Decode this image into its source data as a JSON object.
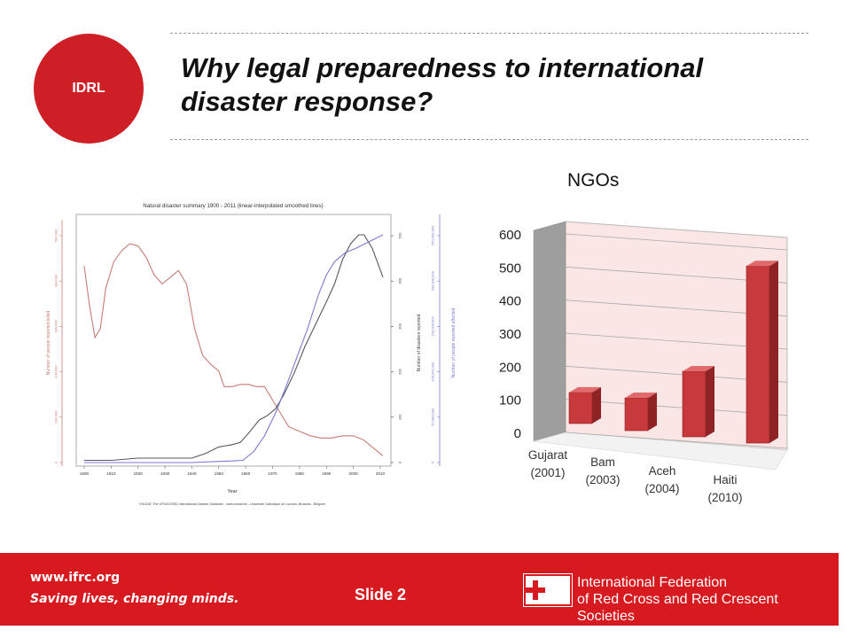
{
  "badge": {
    "label": "IDRL"
  },
  "title": "Why legal preparedness to international disaster response?",
  "left_chart": {
    "title": "Natural disaster summary 1900 - 2011 (linear-interpolated smoothed lines)",
    "xlabel": "Year",
    "ylabel_killed": "Number of people reported killed",
    "ylabel_disasters": "Number of disasters reported",
    "ylabel_affected": "Number of people reported affected",
    "source": "EM-DAT: The OFDA/CRED International Disaster Database - www.emdat.be - Université Catholique de Louvain, Brussels - Belgium",
    "x_ticks": [
      "1900",
      "1910",
      "1920",
      "1930",
      "1940",
      "1950",
      "1960",
      "1970",
      "1980",
      "1990",
      "2000",
      "2010"
    ],
    "killed_ticks": [
      "0",
      "100,000",
      "200,000",
      "300,000",
      "400,000",
      "500,000"
    ],
    "disaster_ticks": [
      "0",
      "100",
      "200",
      "300",
      "400",
      "500"
    ],
    "affected_ticks": [
      "0",
      "50,000,000",
      "100,000,000",
      "150,000,000",
      "200,000,000",
      "250,000,000"
    ],
    "colors": {
      "killed": "#c87b72",
      "disasters": "#555566",
      "affected": "#7a7ad0"
    }
  },
  "chart_data": {
    "type": "bar",
    "title": "NGOs",
    "categories": [
      "Gujarat (2001)",
      "Bam (2003)",
      "Aceh (2004)",
      "Haiti (2010)"
    ],
    "category_lines": [
      [
        "Gujarat",
        "(2001)"
      ],
      [
        "Bam",
        "(2003)"
      ],
      [
        "Aceh",
        "(2004)"
      ],
      [
        "Haiti",
        "(2010)"
      ]
    ],
    "values": [
      95,
      100,
      200,
      540
    ],
    "ylim": [
      0,
      600
    ],
    "yticks": [
      "0",
      "100",
      "200",
      "300",
      "400",
      "500",
      "600"
    ],
    "bar_color": "#c8393c",
    "grid": true
  },
  "footer": {
    "url": "www.ifrc.org",
    "tagline": "Saving lives, changing minds.",
    "slide_label": "Slide 2",
    "org_line1": "International Federation",
    "org_line2": "of Red Cross and Red Crescent Societies"
  }
}
